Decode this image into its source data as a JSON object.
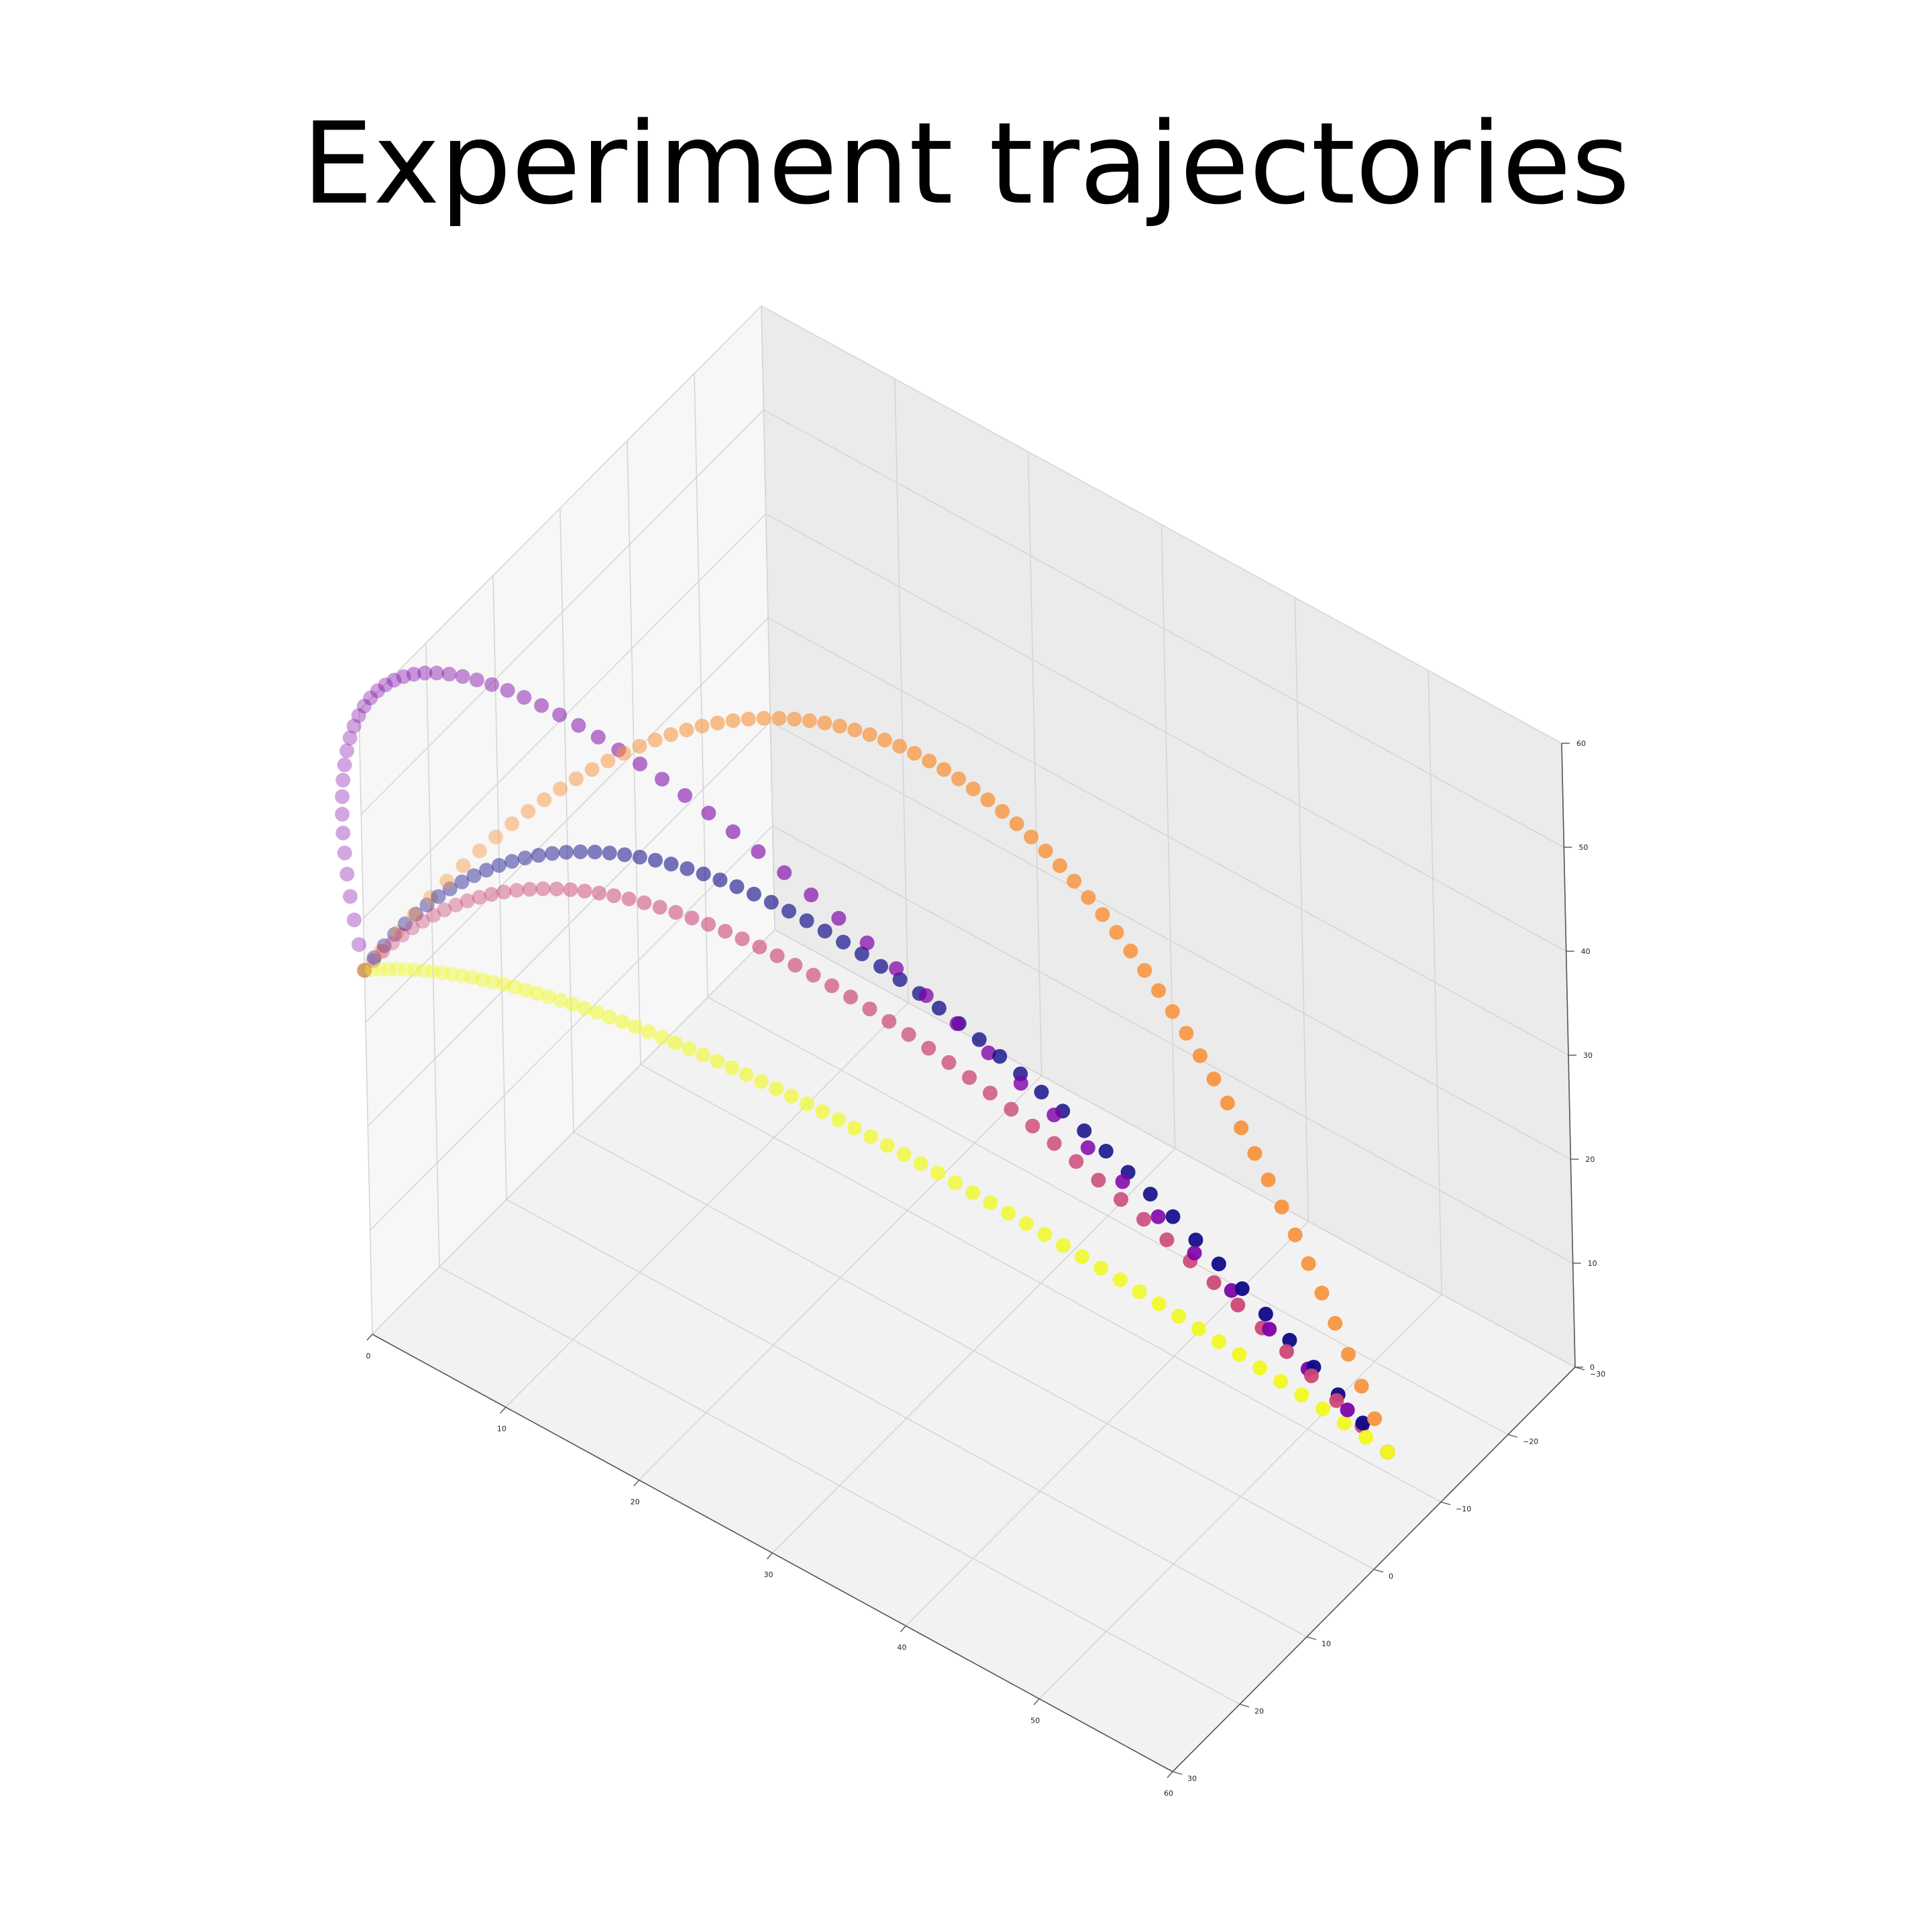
{
  "chart_data": {
    "type": "scatter",
    "dimensions": 3,
    "title": "Experiment trajectories",
    "xlabel": "",
    "ylabel": "",
    "zlabel": "",
    "xlim": [
      0,
      60
    ],
    "ylim": [
      30,
      -30
    ],
    "zlim": [
      0,
      60
    ],
    "x_ticks": [
      "0",
      "10",
      "20",
      "30",
      "40",
      "50",
      "60"
    ],
    "y_ticks": [
      "−30",
      "−20",
      "−10",
      "0",
      "10",
      "20",
      "30"
    ],
    "z_ticks": [
      "0",
      "10",
      "20",
      "30",
      "40",
      "50",
      "60"
    ],
    "grid": true,
    "legend": "none",
    "colormap": "plasma",
    "start_point": {
      "x": 0,
      "y": 30,
      "z": 35
    },
    "end_point": {
      "x": 55,
      "y": -12,
      "z": 0
    },
    "series": [
      {
        "color": "#0d0887",
        "points": 60,
        "apex": {
          "x": 22,
          "y": 14,
          "z": 47
        }
      },
      {
        "color": "#7e03a8",
        "points": 60,
        "apex": {
          "x": 8,
          "y": 20,
          "z": 60
        }
      },
      {
        "color": "#cc4778",
        "points": 60,
        "apex": {
          "x": 20,
          "y": 12,
          "z": 40
        }
      },
      {
        "color": "#f89540",
        "points": 70,
        "apex": {
          "x": 28,
          "y": 4,
          "z": 59
        }
      },
      {
        "color": "#f0f921",
        "points": 70,
        "apex": {
          "x": 20,
          "y": 12,
          "z": 27
        }
      }
    ]
  }
}
